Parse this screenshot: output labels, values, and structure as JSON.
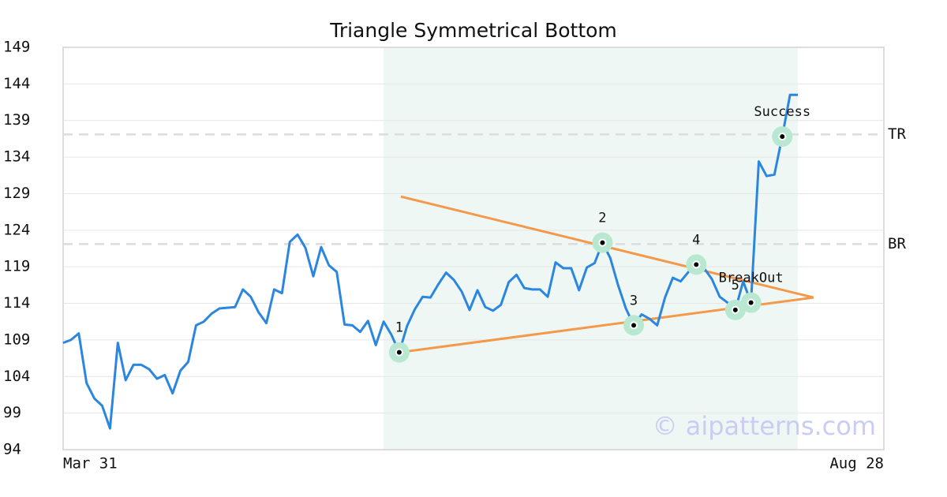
{
  "chart_data": {
    "type": "line",
    "title": "Triangle Symmetrical Bottom",
    "watermark": "© aipatterns.com",
    "xlim": [
      0,
      105
    ],
    "xticks": [
      {
        "value": 0,
        "label": "Mar 31"
      },
      {
        "value": 105,
        "label": "Aug 28"
      }
    ],
    "ylim": [
      94,
      149
    ],
    "yticks": [
      94,
      99,
      104,
      109,
      114,
      119,
      124,
      129,
      134,
      139,
      144,
      149
    ],
    "grid": true,
    "series": [
      {
        "color": "#2b86e0",
        "values": [
          108.6,
          109.0,
          109.9,
          103.1,
          101.0,
          100.0,
          96.9,
          108.6,
          103.5,
          105.6,
          105.6,
          105.0,
          103.7,
          104.2,
          101.7,
          104.8,
          106.0,
          111.0,
          111.5,
          112.6,
          113.3,
          113.4,
          113.5,
          115.9,
          114.9,
          112.8,
          111.3,
          115.9,
          115.4,
          122.4,
          123.4,
          121.6,
          117.7,
          121.7,
          119.2,
          118.3,
          111.1,
          111.0,
          110.1,
          111.6,
          108.3,
          111.5,
          109.7,
          107.3,
          110.9,
          113.2,
          114.9,
          114.8,
          116.6,
          118.2,
          117.2,
          115.6,
          113.1,
          115.8,
          113.5,
          113.0,
          113.8,
          116.9,
          117.9,
          116.1,
          115.9,
          115.9,
          114.9,
          119.6,
          118.8,
          118.8,
          115.8,
          118.9,
          119.5,
          122.3,
          120.2,
          116.5,
          113.3,
          111.0,
          112.5,
          111.9,
          111.0,
          114.8,
          117.5,
          117.0,
          118.3,
          119.3,
          118.8,
          117.3,
          114.9,
          114.1,
          113.1,
          117.0,
          114.1,
          133.4,
          131.4,
          131.6,
          136.8,
          142.5,
          142.5
        ]
      }
    ],
    "shaded_region": {
      "x": [
        41,
        94
      ],
      "color": "#eef7f3"
    },
    "pattern_points": [
      {
        "label": "1",
        "index": 43
      },
      {
        "label": "2",
        "index": 69
      },
      {
        "label": "3",
        "index": 73
      },
      {
        "label": "4",
        "index": 81
      },
      {
        "label": "5",
        "index": 86
      },
      {
        "label": "BreakOut",
        "index": 88
      },
      {
        "label": "Success",
        "index": 92
      }
    ],
    "trend_lines": [
      {
        "color": "#f4994a",
        "x": [
          43.2,
          96
        ],
        "y": [
          128.6,
          114.8
        ]
      },
      {
        "color": "#f4994a",
        "x": [
          43,
          96
        ],
        "y": [
          107.3,
          114.8
        ]
      }
    ],
    "levels": [
      {
        "label": "TR",
        "value": 137.1
      },
      {
        "label": "BR",
        "value": 122.1
      }
    ]
  }
}
